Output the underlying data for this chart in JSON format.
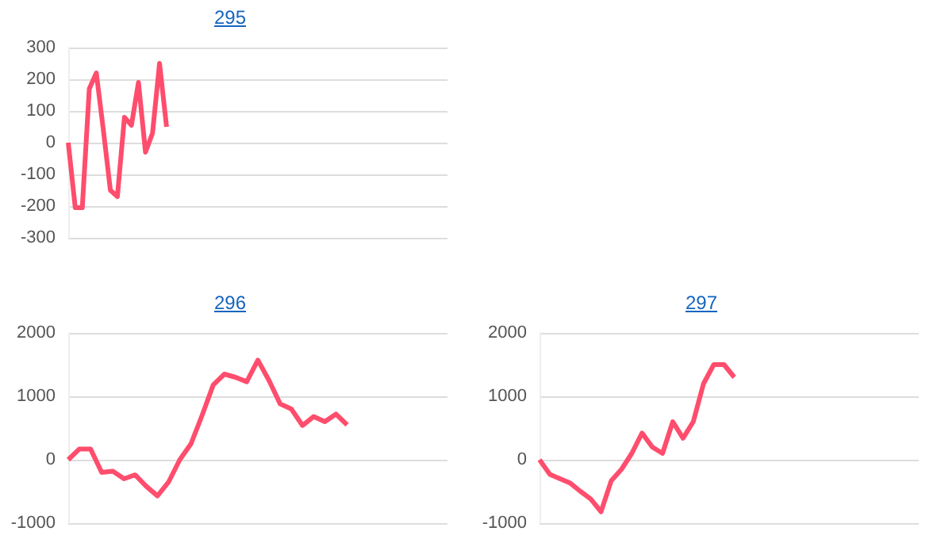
{
  "chart_data": [
    {
      "type": "line",
      "title": "295",
      "categories": [
        null,
        null,
        null,
        null,
        null,
        null,
        null,
        null,
        null,
        null,
        null,
        null,
        null,
        null,
        null,
        null,
        null,
        null,
        null,
        null,
        null,
        null,
        null,
        null,
        null,
        null,
        null,
        null,
        null,
        null,
        null,
        null,
        null,
        null,
        null,
        null,
        null,
        null,
        null,
        null,
        null,
        null,
        null,
        null,
        null,
        null,
        null,
        null,
        null,
        null,
        null,
        null,
        null,
        null,
        null
      ],
      "series": [
        {
          "color": "#ff4d6d",
          "values": [
            0,
            -205,
            -205,
            170,
            220,
            40,
            -150,
            -170,
            80,
            55,
            190,
            -30,
            30,
            250,
            50,
            null,
            null,
            null,
            null,
            null,
            null,
            null,
            null,
            null,
            null,
            null,
            null,
            null,
            null,
            null,
            null,
            null,
            null,
            null,
            null,
            null,
            null,
            null,
            null,
            null,
            null,
            null,
            null,
            null,
            null,
            null,
            null,
            null,
            null,
            null,
            null,
            null,
            null,
            null,
            null
          ]
        }
      ],
      "ylim": [
        -300,
        300
      ],
      "yticks": [
        -300,
        -200,
        -100,
        0,
        100,
        200,
        300
      ],
      "grid": "y",
      "tick_labels": "y",
      "line_style": "solid"
    },
    {
      "type": "line",
      "title": "296",
      "categories": [
        null,
        null,
        null,
        null,
        null,
        null,
        null,
        null,
        null,
        null,
        null,
        null,
        null,
        null,
        null,
        null,
        null,
        null,
        null,
        null,
        null,
        null,
        null,
        null,
        null,
        null,
        null,
        null,
        null,
        null,
        null,
        null,
        null,
        null,
        null
      ],
      "series": [
        {
          "color": "#ff4d6d",
          "values": [
            0,
            170,
            170,
            -200,
            -180,
            -300,
            -240,
            -420,
            -570,
            -350,
            0,
            250,
            700,
            1180,
            1350,
            1300,
            1230,
            1570,
            1250,
            880,
            800,
            540,
            680,
            600,
            720,
            550,
            null,
            null,
            null,
            null,
            null,
            null,
            null,
            null,
            null
          ]
        }
      ],
      "ylim": [
        -1000,
        2000
      ],
      "yticks": [
        -1000,
        0,
        1000,
        2000
      ],
      "grid": "y",
      "tick_labels": "y",
      "line_style": "solid"
    },
    {
      "type": "line",
      "title": "297",
      "categories": [
        null,
        null,
        null,
        null,
        null,
        null,
        null,
        null,
        null,
        null,
        null,
        null,
        null,
        null,
        null,
        null,
        null,
        null,
        null,
        null,
        null,
        null,
        null,
        null,
        null,
        null,
        null,
        null,
        null,
        null,
        null,
        null,
        null,
        null,
        null,
        null,
        null,
        null
      ],
      "series": [
        {
          "color": "#ff4d6d",
          "values": [
            0,
            -230,
            -300,
            -370,
            -500,
            -620,
            -820,
            -330,
            -150,
            100,
            420,
            200,
            100,
            600,
            340,
            600,
            1200,
            1500,
            1500,
            1300,
            null,
            null,
            null,
            null,
            null,
            null,
            null,
            null,
            null,
            null,
            null,
            null,
            null,
            null,
            null,
            null,
            null,
            null
          ]
        }
      ],
      "ylim": [
        -1000,
        2000
      ],
      "yticks": [
        -1000,
        0,
        1000,
        2000
      ],
      "grid": "y",
      "tick_labels": "y",
      "line_style": "solid"
    }
  ]
}
